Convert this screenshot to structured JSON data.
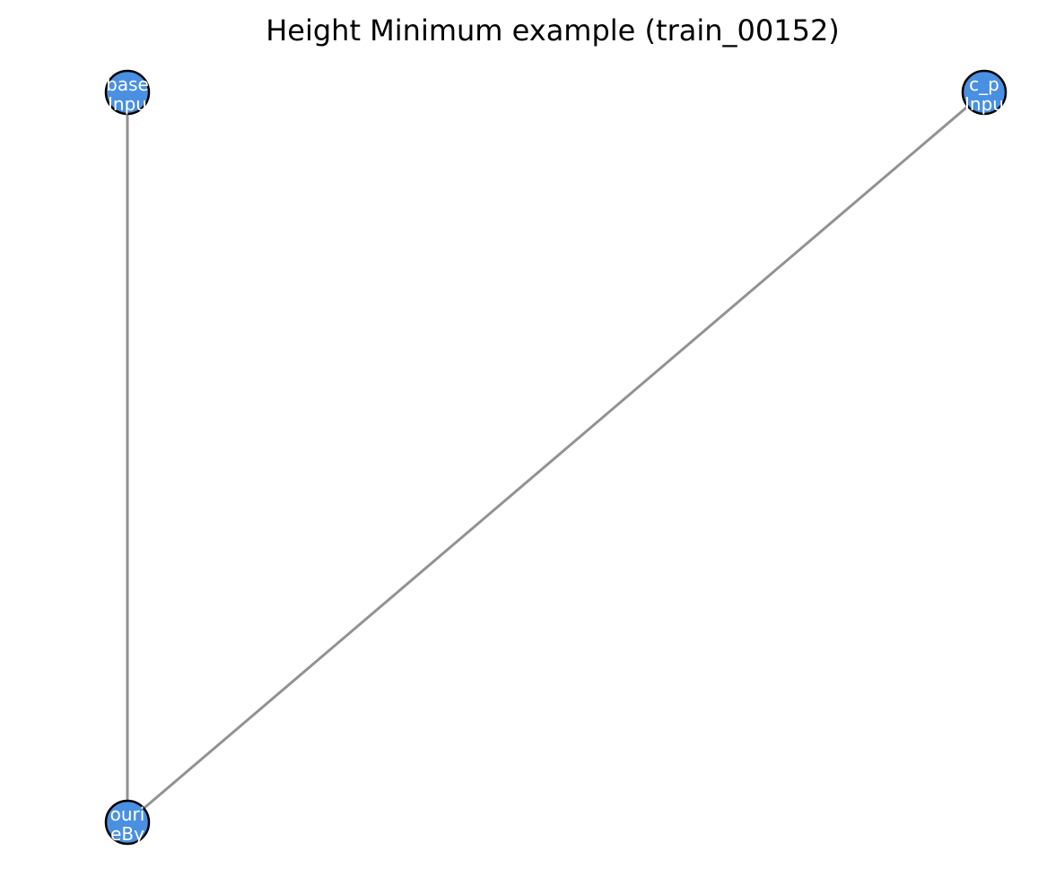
{
  "title": "Height Minimum example (train_00152)",
  "colors": {
    "node_fill": "#4a90e2",
    "node_stroke": "#000000",
    "edge": "#929292",
    "label": "#ffffff"
  },
  "nodes": [
    {
      "id": "n1",
      "lines": [
        "base",
        "Inpu"
      ]
    },
    {
      "id": "n2",
      "lines": [
        "c_p",
        "Inpu"
      ]
    },
    {
      "id": "n3",
      "lines": [
        "ouri",
        "eBy"
      ]
    }
  ],
  "edges": [
    {
      "from": "n1",
      "to": "n3"
    },
    {
      "from": "n2",
      "to": "n3"
    }
  ]
}
